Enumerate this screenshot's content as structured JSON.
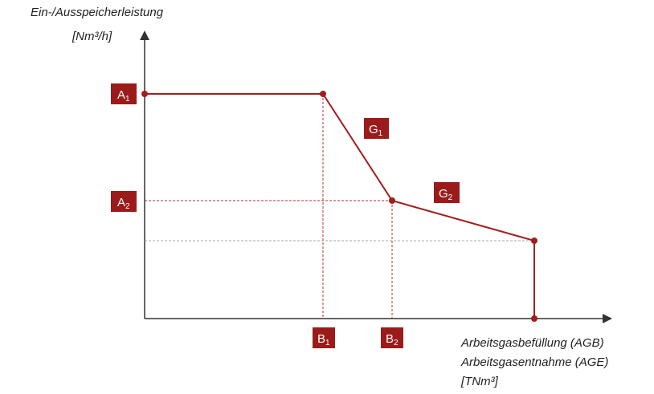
{
  "y_axis": {
    "lines": [
      "Ein-/Ausspeicherleistung",
      "[Nm³/h]"
    ]
  },
  "x_axis": {
    "lines": [
      "Arbeitsgasbefüllung (AGB)",
      "Arbeitsgasentnahme (AGE)",
      "[TNm³]"
    ]
  },
  "labels": [
    {
      "base": "A",
      "sub": "1"
    },
    {
      "base": "A",
      "sub": "2"
    },
    {
      "base": "B",
      "sub": "1"
    },
    {
      "base": "B",
      "sub": "2"
    },
    {
      "base": "G",
      "sub": "1"
    },
    {
      "base": "G",
      "sub": "2"
    }
  ]
}
